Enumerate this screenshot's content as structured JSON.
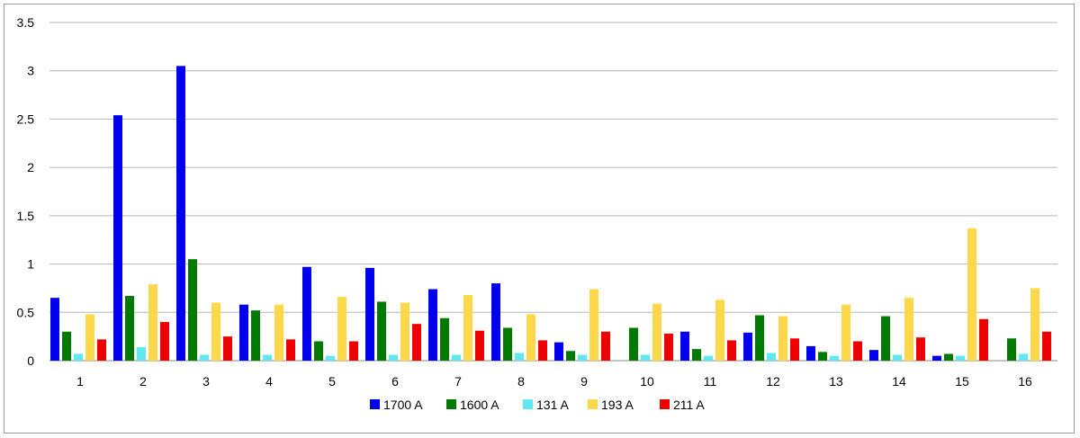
{
  "chart_data": {
    "type": "bar",
    "title": "",
    "xlabel": "",
    "ylabel": "",
    "ylim": [
      0,
      3.5
    ],
    "yticks": [
      "0",
      "0.5",
      "1",
      "1.5",
      "2",
      "2.5",
      "3",
      "3.5"
    ],
    "grid": true,
    "legend_position": "bottom",
    "categories": [
      "1",
      "2",
      "3",
      "4",
      "5",
      "6",
      "7",
      "8",
      "9",
      "10",
      "11",
      "12",
      "13",
      "14",
      "15",
      "16"
    ],
    "series": [
      {
        "name": "1700 A",
        "color": "#0000ee",
        "values": [
          0.65,
          2.54,
          3.05,
          0.58,
          0.97,
          0.96,
          0.74,
          0.8,
          0.19,
          0,
          0.3,
          0.29,
          0.15,
          0.11,
          0.05,
          0
        ]
      },
      {
        "name": "1600 A",
        "color": "#007a00",
        "values": [
          0.3,
          0.67,
          1.05,
          0.52,
          0.2,
          0.61,
          0.44,
          0.34,
          0.1,
          0.34,
          0.12,
          0.47,
          0.09,
          0.46,
          0.07,
          0.23
        ]
      },
      {
        "name": "131 A",
        "color": "#5ee8f0",
        "values": [
          0.07,
          0.14,
          0.06,
          0.06,
          0.05,
          0.06,
          0.06,
          0.08,
          0.06,
          0.06,
          0.05,
          0.08,
          0.05,
          0.06,
          0.05,
          0.07
        ]
      },
      {
        "name": "193 A",
        "color": "#ffd84a",
        "values": [
          0.48,
          0.79,
          0.6,
          0.58,
          0.66,
          0.6,
          0.68,
          0.48,
          0.74,
          0.59,
          0.63,
          0.46,
          0.58,
          0.65,
          1.37,
          0.75
        ]
      },
      {
        "name": "211 A",
        "color": "#ee0000",
        "values": [
          0.22,
          0.4,
          0.25,
          0.22,
          0.2,
          0.38,
          0.31,
          0.21,
          0.3,
          0.28,
          0.21,
          0.23,
          0.2,
          0.24,
          0.43,
          0.3
        ]
      }
    ]
  }
}
